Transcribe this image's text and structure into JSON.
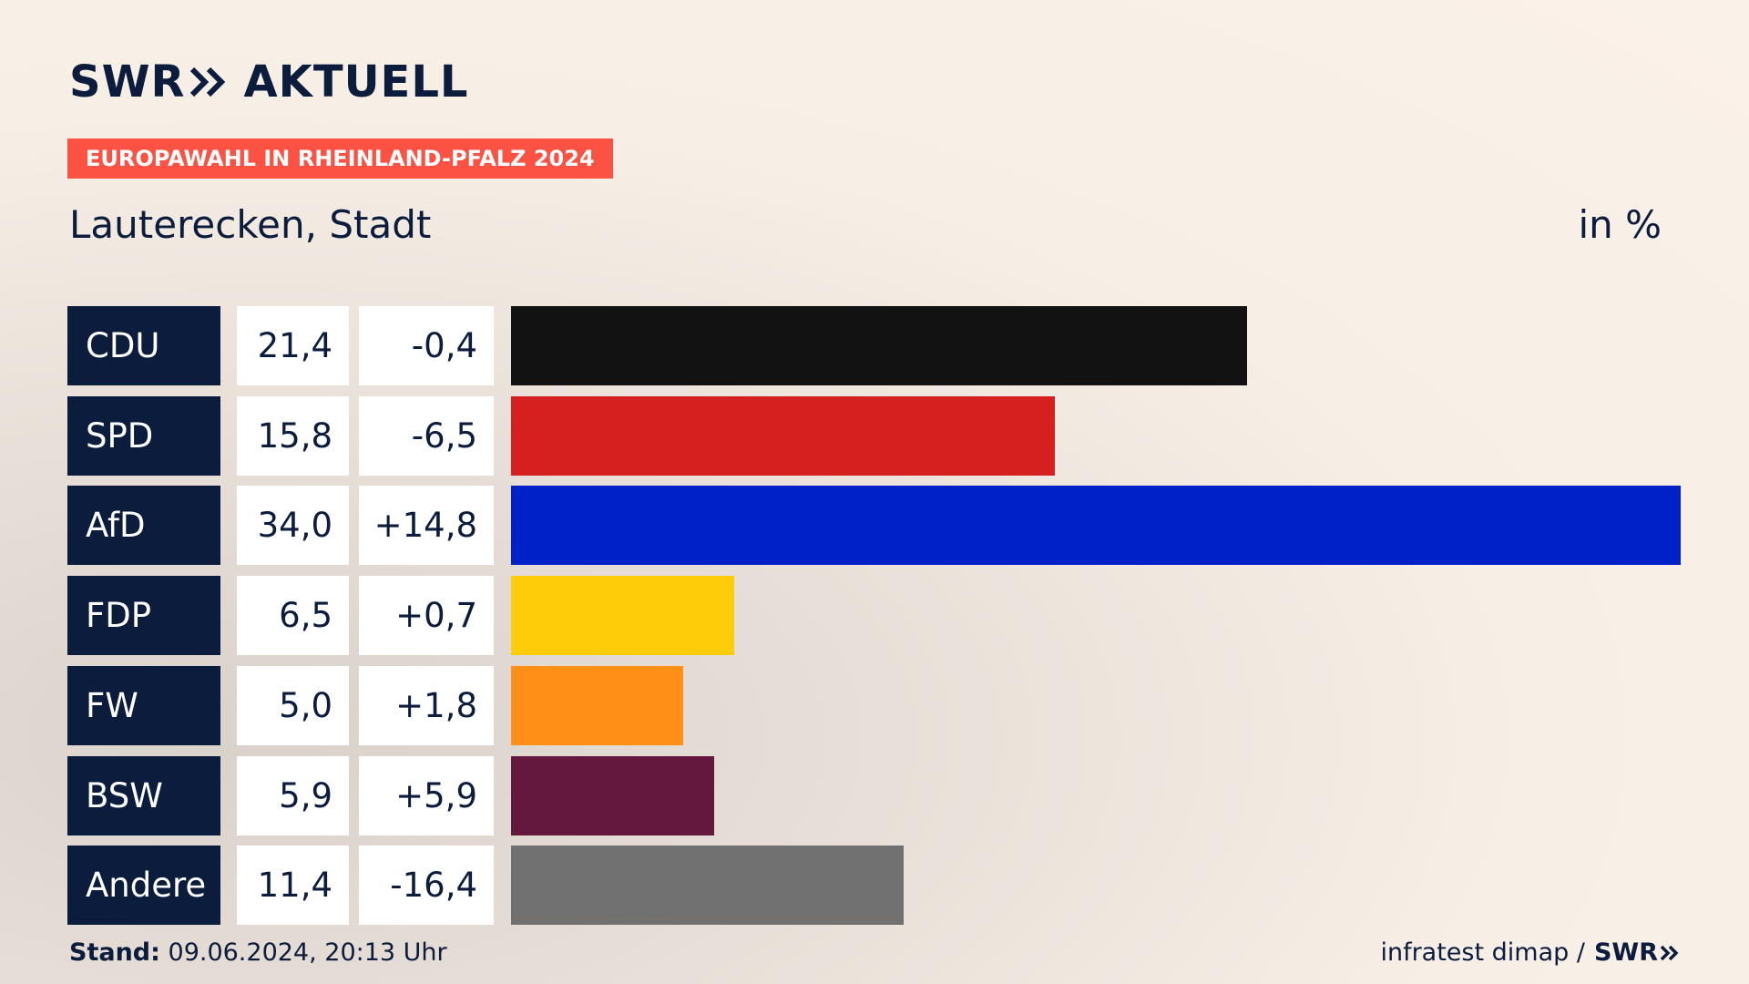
{
  "header": {
    "brand": "SWR",
    "brand_suffix": "AKTUELL",
    "badge": "EUROPAWAHL IN RHEINLAND-PFALZ 2024",
    "place": "Lauterecken, Stadt",
    "unit": "in %"
  },
  "chart_data": {
    "type": "bar",
    "orientation": "horizontal",
    "title": "Lauterecken, Stadt",
    "subtitle": "EUROPAWAHL IN RHEINLAND-PFALZ 2024",
    "unit": "in %",
    "xlim": [
      0,
      34.0
    ],
    "categories": [
      "CDU",
      "SPD",
      "AfD",
      "FDP",
      "FW",
      "BSW",
      "Andere"
    ],
    "values": [
      21.4,
      15.8,
      34.0,
      6.5,
      5.0,
      5.9,
      11.4
    ],
    "value_labels": [
      "21,4",
      "15,8",
      "34,0",
      "6,5",
      "5,0",
      "5,9",
      "11,4"
    ],
    "differences": [
      -0.4,
      -6.5,
      14.8,
      0.7,
      1.8,
      5.9,
      -16.4
    ],
    "difference_labels": [
      "-0,4",
      "-6,5",
      "+14,8",
      "+0,7",
      "+1,8",
      "+5,9",
      "-16,4"
    ],
    "colors": [
      "#121212",
      "#d61f1f",
      "#0021c8",
      "#ffcc0a",
      "#ff8f17",
      "#65183e",
      "#717171"
    ]
  },
  "footer": {
    "stand_label": "Stand:",
    "stand_value": "09.06.2024, 20:13 Uhr",
    "source": "infratest dimap /",
    "source_brand": "SWR"
  },
  "colors": {
    "navy": "#0b1c3d",
    "badge": "#fb5244"
  }
}
